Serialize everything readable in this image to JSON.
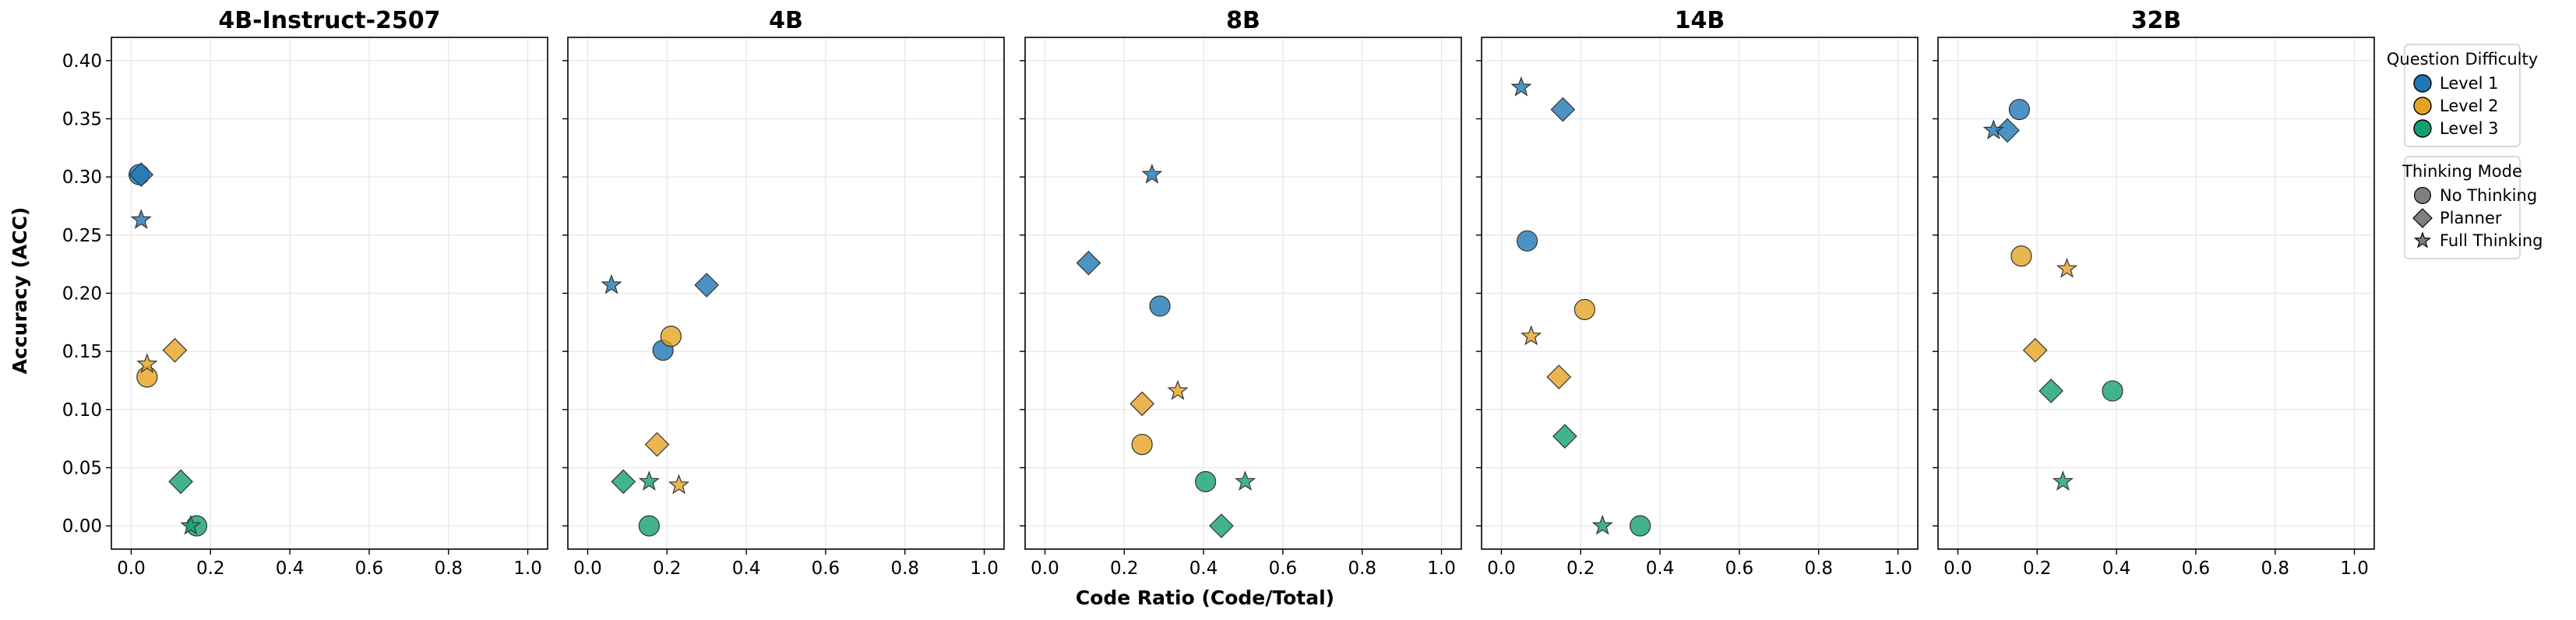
{
  "chart_data": {
    "type": "scatter",
    "xlabel": "Code Ratio (Code/Total)",
    "ylabel": "Accuracy (ACC)",
    "xlim": [
      -0.05,
      1.05
    ],
    "ylim": [
      -0.02,
      0.42
    ],
    "xticks": [
      0.0,
      0.2,
      0.4,
      0.6,
      0.8,
      1.0
    ],
    "yticks": [
      0.0,
      0.05,
      0.1,
      0.15,
      0.2,
      0.25,
      0.3,
      0.35,
      0.4
    ],
    "grid": true,
    "colors": {
      "Level 1": "#1f77b4",
      "Level 2": "#e6a323",
      "Level 3": "#14a06e"
    },
    "legend": {
      "difficulty_title": "Question Difficulty",
      "difficulty_items": [
        "Level 1",
        "Level 2",
        "Level 3"
      ],
      "mode_title": "Thinking Mode",
      "mode_items": [
        "No Thinking",
        "Planner",
        "Full Thinking"
      ],
      "placement": "right"
    },
    "panels": [
      {
        "title": "4B-Instruct-2507",
        "points": [
          {
            "level": "Level 1",
            "mode": "No Thinking",
            "x": 0.02,
            "y": 0.302
          },
          {
            "level": "Level 1",
            "mode": "Planner",
            "x": 0.025,
            "y": 0.302
          },
          {
            "level": "Level 1",
            "mode": "Full Thinking",
            "x": 0.025,
            "y": 0.263
          },
          {
            "level": "Level 2",
            "mode": "No Thinking",
            "x": 0.04,
            "y": 0.128
          },
          {
            "level": "Level 2",
            "mode": "Planner",
            "x": 0.11,
            "y": 0.151
          },
          {
            "level": "Level 2",
            "mode": "Full Thinking",
            "x": 0.04,
            "y": 0.139
          },
          {
            "level": "Level 3",
            "mode": "No Thinking",
            "x": 0.165,
            "y": 0.0
          },
          {
            "level": "Level 3",
            "mode": "Planner",
            "x": 0.125,
            "y": 0.038
          },
          {
            "level": "Level 3",
            "mode": "Full Thinking",
            "x": 0.15,
            "y": 0.0
          }
        ]
      },
      {
        "title": "4B",
        "points": [
          {
            "level": "Level 1",
            "mode": "No Thinking",
            "x": 0.19,
            "y": 0.151
          },
          {
            "level": "Level 1",
            "mode": "Planner",
            "x": 0.3,
            "y": 0.207
          },
          {
            "level": "Level 1",
            "mode": "Full Thinking",
            "x": 0.06,
            "y": 0.207
          },
          {
            "level": "Level 2",
            "mode": "No Thinking",
            "x": 0.21,
            "y": 0.163
          },
          {
            "level": "Level 2",
            "mode": "Planner",
            "x": 0.175,
            "y": 0.07
          },
          {
            "level": "Level 2",
            "mode": "Full Thinking",
            "x": 0.23,
            "y": 0.035
          },
          {
            "level": "Level 3",
            "mode": "No Thinking",
            "x": 0.155,
            "y": 0.0
          },
          {
            "level": "Level 3",
            "mode": "Planner",
            "x": 0.09,
            "y": 0.038
          },
          {
            "level": "Level 3",
            "mode": "Full Thinking",
            "x": 0.155,
            "y": 0.038
          }
        ]
      },
      {
        "title": "8B",
        "points": [
          {
            "level": "Level 1",
            "mode": "No Thinking",
            "x": 0.29,
            "y": 0.189
          },
          {
            "level": "Level 1",
            "mode": "Planner",
            "x": 0.11,
            "y": 0.226
          },
          {
            "level": "Level 1",
            "mode": "Full Thinking",
            "x": 0.27,
            "y": 0.302
          },
          {
            "level": "Level 2",
            "mode": "No Thinking",
            "x": 0.245,
            "y": 0.07
          },
          {
            "level": "Level 2",
            "mode": "Planner",
            "x": 0.245,
            "y": 0.105
          },
          {
            "level": "Level 2",
            "mode": "Full Thinking",
            "x": 0.335,
            "y": 0.116
          },
          {
            "level": "Level 3",
            "mode": "No Thinking",
            "x": 0.405,
            "y": 0.038
          },
          {
            "level": "Level 3",
            "mode": "Planner",
            "x": 0.445,
            "y": 0.0
          },
          {
            "level": "Level 3",
            "mode": "Full Thinking",
            "x": 0.505,
            "y": 0.038
          }
        ]
      },
      {
        "title": "14B",
        "points": [
          {
            "level": "Level 1",
            "mode": "No Thinking",
            "x": 0.065,
            "y": 0.245
          },
          {
            "level": "Level 1",
            "mode": "Planner",
            "x": 0.155,
            "y": 0.358
          },
          {
            "level": "Level 1",
            "mode": "Full Thinking",
            "x": 0.05,
            "y": 0.377
          },
          {
            "level": "Level 2",
            "mode": "No Thinking",
            "x": 0.21,
            "y": 0.186
          },
          {
            "level": "Level 2",
            "mode": "Planner",
            "x": 0.145,
            "y": 0.128
          },
          {
            "level": "Level 2",
            "mode": "Full Thinking",
            "x": 0.075,
            "y": 0.163
          },
          {
            "level": "Level 3",
            "mode": "No Thinking",
            "x": 0.35,
            "y": 0.0
          },
          {
            "level": "Level 3",
            "mode": "Planner",
            "x": 0.16,
            "y": 0.077
          },
          {
            "level": "Level 3",
            "mode": "Full Thinking",
            "x": 0.255,
            "y": 0.0
          }
        ]
      },
      {
        "title": "32B",
        "points": [
          {
            "level": "Level 1",
            "mode": "No Thinking",
            "x": 0.155,
            "y": 0.358
          },
          {
            "level": "Level 1",
            "mode": "Planner",
            "x": 0.125,
            "y": 0.34
          },
          {
            "level": "Level 1",
            "mode": "Full Thinking",
            "x": 0.09,
            "y": 0.34
          },
          {
            "level": "Level 2",
            "mode": "No Thinking",
            "x": 0.16,
            "y": 0.232
          },
          {
            "level": "Level 2",
            "mode": "Planner",
            "x": 0.195,
            "y": 0.151
          },
          {
            "level": "Level 2",
            "mode": "Full Thinking",
            "x": 0.275,
            "y": 0.221
          },
          {
            "level": "Level 3",
            "mode": "No Thinking",
            "x": 0.39,
            "y": 0.116
          },
          {
            "level": "Level 3",
            "mode": "Planner",
            "x": 0.235,
            "y": 0.116
          },
          {
            "level": "Level 3",
            "mode": "Full Thinking",
            "x": 0.265,
            "y": 0.038
          }
        ]
      }
    ]
  }
}
